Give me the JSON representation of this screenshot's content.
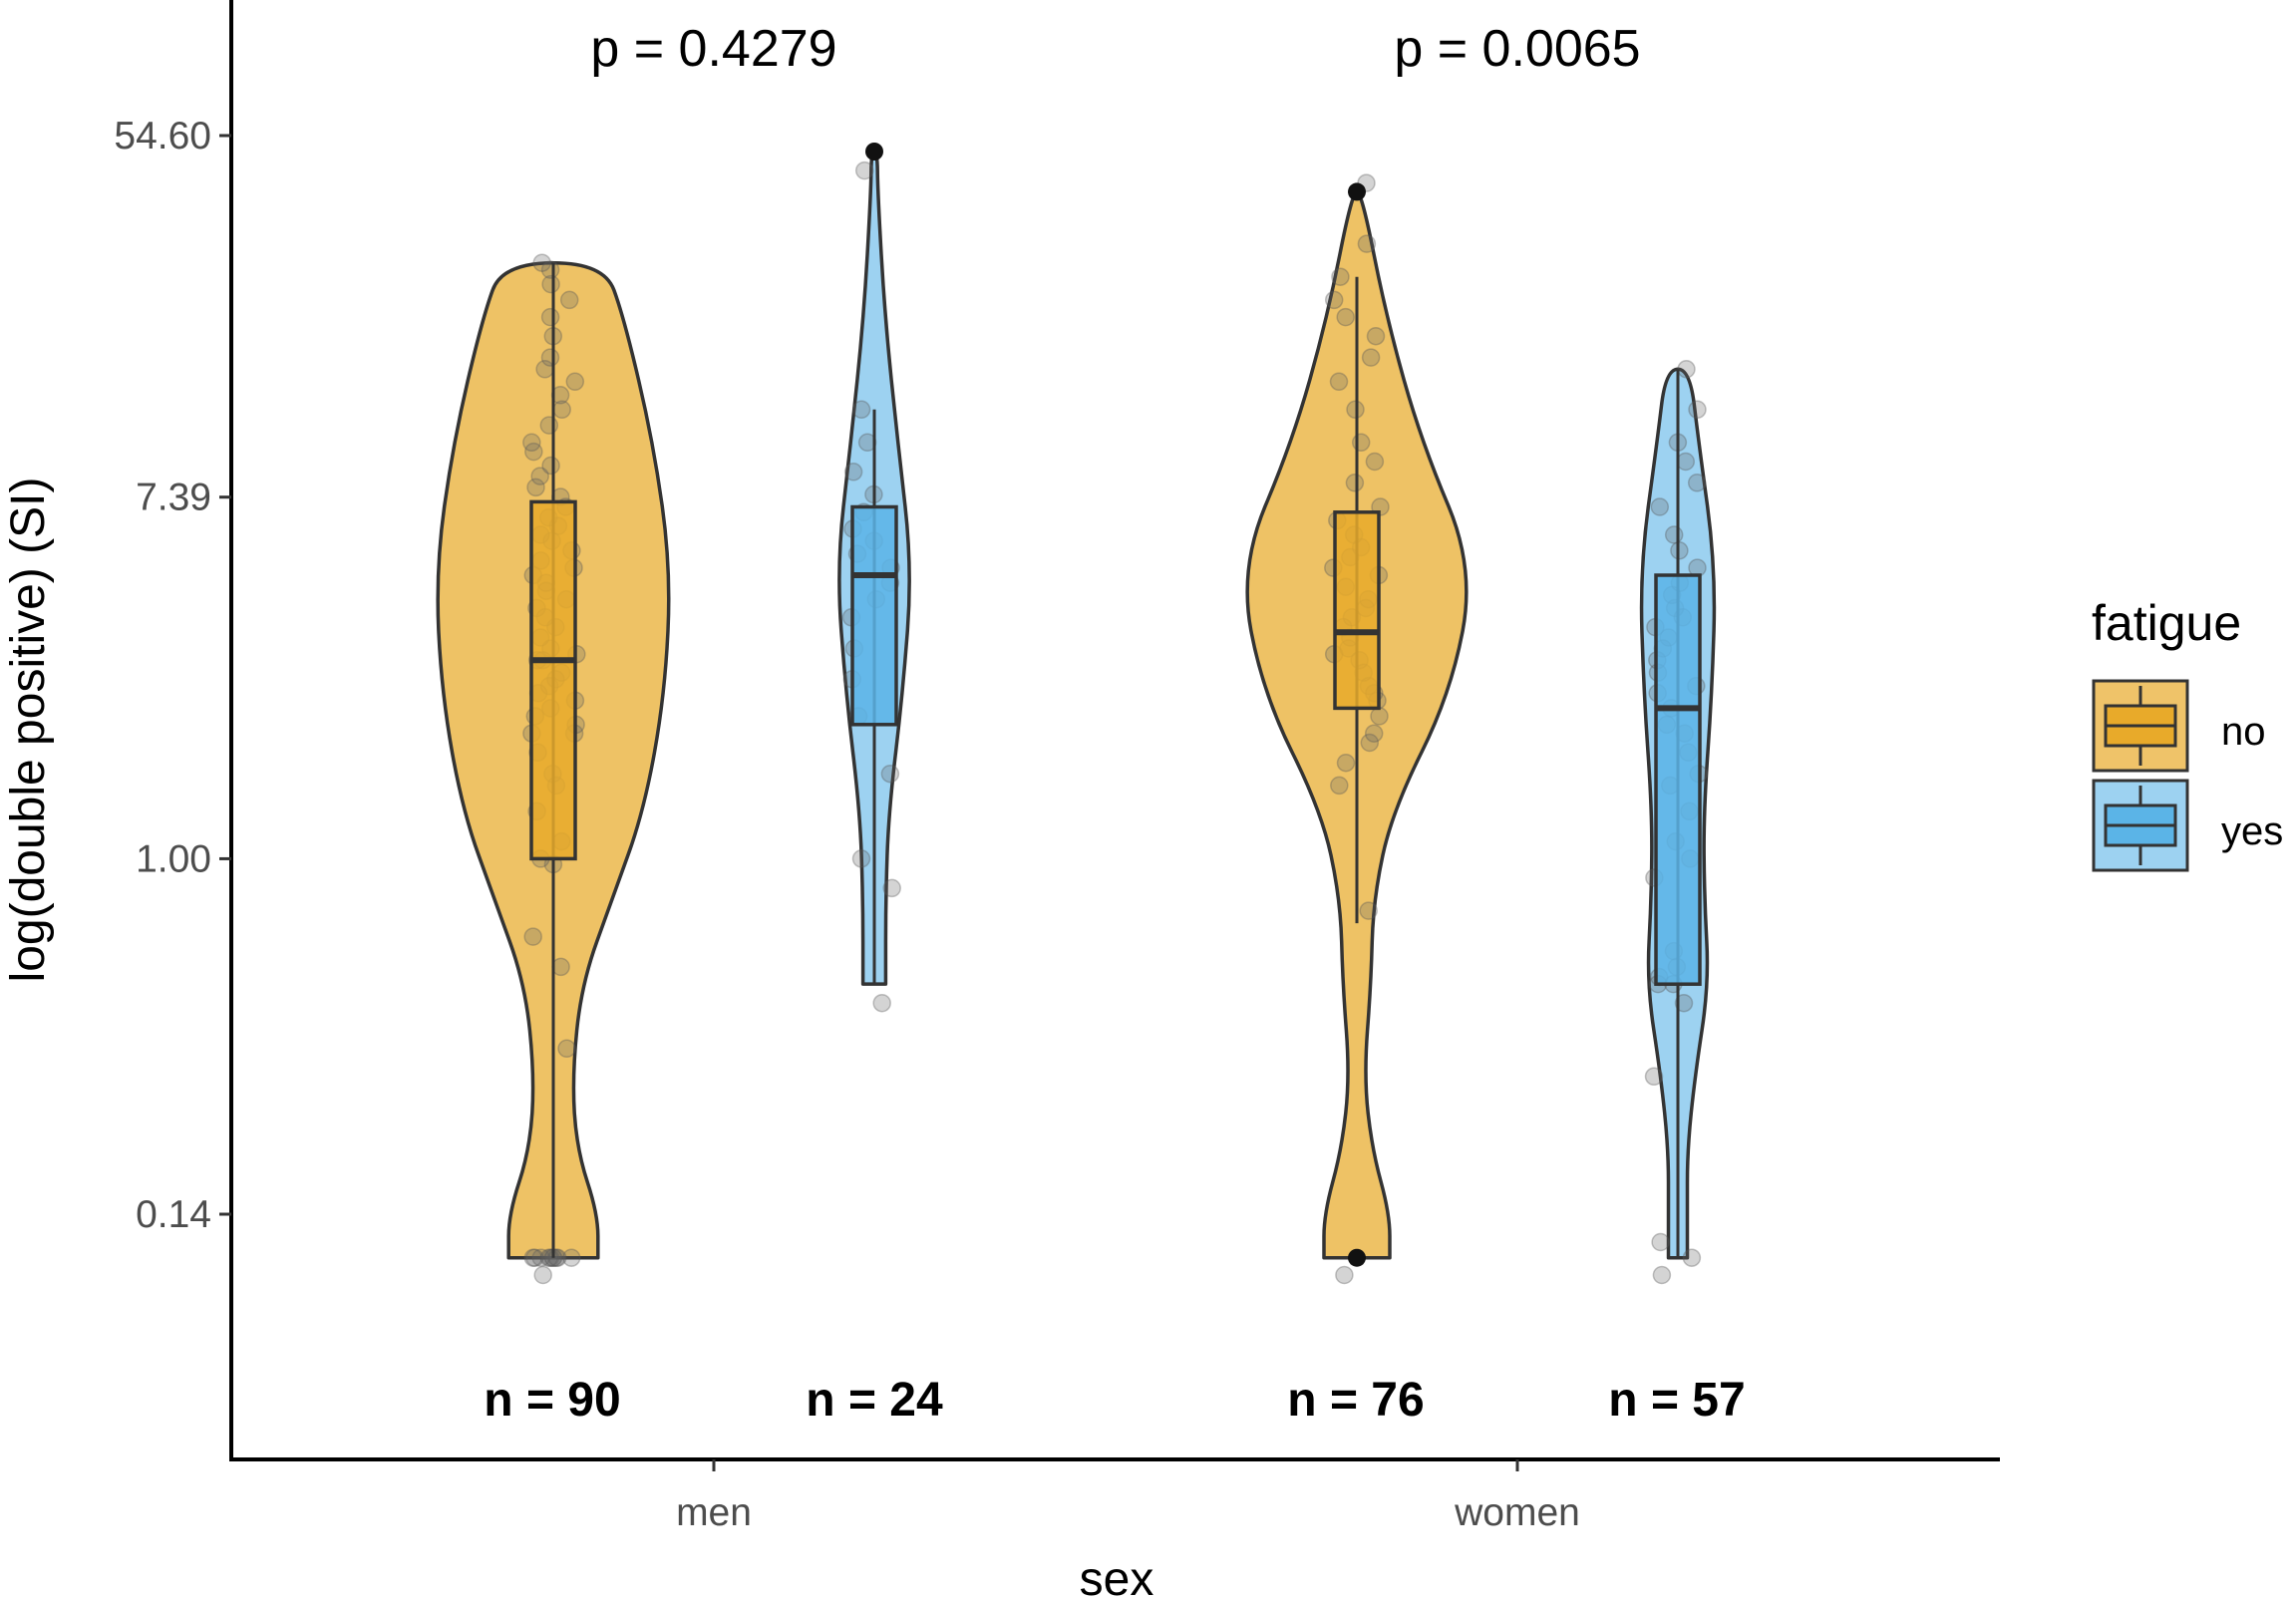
{
  "chart_data": {
    "type": "violin",
    "xlabel": "sex",
    "ylabel": "log(double positive) (SI)",
    "y_scale": "log",
    "y_ticks": [
      {
        "value": 0.14,
        "label": "0.14"
      },
      {
        "value": 1.0,
        "label": "1.00"
      },
      {
        "value": 7.39,
        "label": "7.39"
      },
      {
        "value": 54.6,
        "label": "54.60"
      }
    ],
    "ylim": [
      0.05,
      400
    ],
    "categories": [
      "men",
      "women"
    ],
    "annotations": [
      "p = 0.4279",
      "p = 0.0065"
    ],
    "legend": {
      "title": "fatigue",
      "placement": "right",
      "entries": [
        {
          "name": "no",
          "color": "#E8AA2A"
        },
        {
          "name": "yes",
          "color": "#5BB4E7"
        }
      ]
    },
    "series": [
      {
        "name": "no",
        "color": "#E8AA2A",
        "groups": [
          {
            "category": "men",
            "n_label": "n = 90",
            "box": {
              "min": 0.11,
              "q1": 1.0,
              "median": 3.0,
              "q3": 7.2,
              "max": 27.0
            },
            "density_min": 0.11,
            "density_max": 27.0,
            "density": [
              [
                0.11,
                0.38
              ],
              [
                0.14,
                0.38
              ],
              [
                0.2,
                0.2
              ],
              [
                0.3,
                0.16
              ],
              [
                0.5,
                0.24
              ],
              [
                0.8,
                0.5
              ],
              [
                1.3,
                0.77
              ],
              [
                2.5,
                0.95
              ],
              [
                5.0,
                1.0
              ],
              [
                10,
                0.85
              ],
              [
                20,
                0.6
              ],
              [
                27,
                0.43
              ]
            ],
            "outliers": [],
            "points": [
              0.11,
              0.11,
              0.11,
              0.11,
              0.11,
              0.11,
              0.11,
              0.11,
              0.11,
              0.11,
              0.1,
              0.35,
              0.55,
              0.65,
              0.97,
              1.0,
              1.1,
              1.3,
              1.5,
              1.6,
              1.8,
              2.0,
              2.0,
              2.1,
              2.2,
              2.3,
              2.4,
              2.5,
              2.6,
              2.7,
              2.8,
              3.0,
              3.0,
              3.1,
              3.2,
              3.4,
              3.6,
              3.8,
              4.0,
              4.2,
              4.4,
              4.6,
              4.8,
              5.0,
              5.2,
              5.5,
              5.8,
              6.0,
              6.3,
              6.6,
              7.0,
              7.4,
              7.8,
              8.3,
              8.8,
              9.5,
              10,
              11,
              12,
              13,
              14,
              15,
              16,
              18,
              20,
              22,
              24,
              26,
              27
            ]
          },
          {
            "category": "women",
            "n_label": "n = 76",
            "box": {
              "min": 0.7,
              "q1": 2.3,
              "median": 3.5,
              "q3": 6.8,
              "max": 25.0
            },
            "density_min": 0.11,
            "density_max": 40.0,
            "density": [
              [
                0.11,
                0.28
              ],
              [
                0.14,
                0.28
              ],
              [
                0.2,
                0.13
              ],
              [
                0.3,
                0.06
              ],
              [
                0.5,
                0.12
              ],
              [
                0.8,
                0.14
              ],
              [
                1.3,
                0.3
              ],
              [
                2.5,
                0.8
              ],
              [
                5.0,
                1.0
              ],
              [
                10,
                0.55
              ],
              [
                20,
                0.25
              ],
              [
                40,
                0.04
              ]
            ],
            "outliers": [
              0.11,
              40.0
            ],
            "points": [
              0.1,
              0.75,
              1.5,
              1.7,
              1.9,
              2.0,
              2.2,
              2.4,
              2.5,
              2.6,
              2.8,
              3.0,
              3.1,
              3.2,
              3.4,
              3.6,
              3.8,
              4.0,
              4.2,
              4.5,
              4.8,
              5.0,
              5.3,
              5.6,
              6.0,
              6.5,
              7.0,
              8.0,
              9.0,
              10,
              12,
              14,
              16,
              18,
              20,
              22,
              25,
              30,
              42
            ]
          }
        ]
      },
      {
        "name": "yes",
        "color": "#5BB4E7",
        "groups": [
          {
            "category": "men",
            "n_label": "n = 24",
            "box": {
              "min": 0.5,
              "q1": 2.1,
              "median": 4.8,
              "q3": 7.0,
              "max": 12.0
            },
            "density_min": 0.5,
            "density_max": 50.0,
            "density": [
              [
                0.5,
                0.3
              ],
              [
                0.8,
                0.3
              ],
              [
                1.3,
                0.38
              ],
              [
                2.5,
                0.75
              ],
              [
                5.0,
                1.0
              ],
              [
                10,
                0.62
              ],
              [
                20,
                0.28
              ],
              [
                40,
                0.09
              ],
              [
                50,
                0.08
              ]
            ],
            "outliers": [
              50.0
            ],
            "points": [
              0.45,
              0.85,
              1.0,
              1.6,
              2.2,
              2.7,
              3.2,
              3.8,
              4.2,
              4.6,
              5.0,
              5.4,
              5.8,
              6.2,
              6.8,
              7.5,
              8.5,
              10,
              12,
              45
            ]
          },
          {
            "category": "women",
            "n_label": "n = 57",
            "box": {
              "min": 0.11,
              "q1": 0.5,
              "median": 2.3,
              "q3": 4.8,
              "max": 15.0
            },
            "density_min": 0.11,
            "density_max": 15.0,
            "density": [
              [
                0.11,
                0.25
              ],
              [
                0.14,
                0.25
              ],
              [
                0.2,
                0.25
              ],
              [
                0.3,
                0.45
              ],
              [
                0.5,
                0.82
              ],
              [
                0.8,
                0.7
              ],
              [
                1.3,
                0.68
              ],
              [
                2.5,
                0.9
              ],
              [
                5.0,
                1.0
              ],
              [
                10,
                0.55
              ],
              [
                15,
                0.32
              ]
            ],
            "outliers": [],
            "points": [
              0.11,
              0.12,
              0.1,
              0.3,
              0.45,
              0.5,
              0.5,
              0.52,
              0.55,
              0.6,
              0.9,
              1.0,
              1.1,
              1.3,
              1.5,
              1.6,
              1.8,
              2.0,
              2.1,
              2.3,
              2.5,
              2.6,
              2.8,
              3.0,
              3.2,
              3.4,
              3.6,
              3.8,
              4.0,
              4.3,
              4.6,
              5.0,
              5.5,
              6.0,
              7.0,
              8.0,
              9.0,
              10,
              12,
              15
            ]
          }
        ]
      }
    ]
  }
}
